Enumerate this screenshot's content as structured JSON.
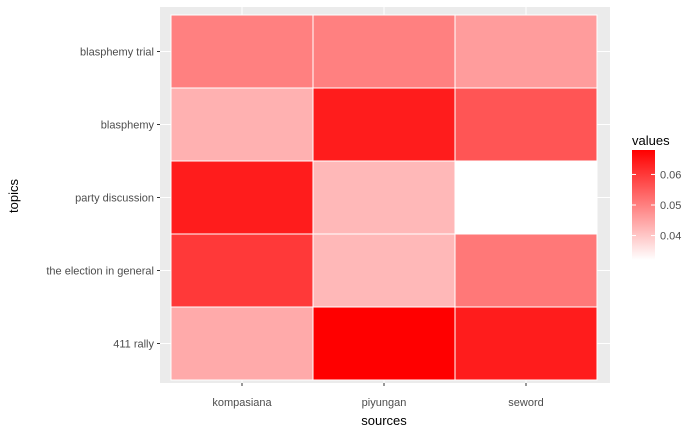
{
  "chart_data": {
    "type": "heatmap",
    "xlabel": "sources",
    "ylabel": "topics",
    "x_categories": [
      "kompasiana",
      "piyungan",
      "seword"
    ],
    "y_categories": [
      "blasphemy trial",
      "blasphemy",
      "party discussion",
      "the election in general",
      "411 rally"
    ],
    "values": [
      [
        0.05,
        0.05,
        0.046
      ],
      [
        0.043,
        0.064,
        0.056
      ],
      [
        0.064,
        0.042,
        0.032
      ],
      [
        0.06,
        0.042,
        0.051
      ],
      [
        0.044,
        0.068,
        0.064
      ]
    ],
    "legend": {
      "title": "values",
      "ticks": [
        0.04,
        0.05,
        0.06
      ],
      "tick_labels": [
        "0.04",
        "0.05",
        "0.06"
      ],
      "range": [
        0.032,
        0.068
      ],
      "low_color": "#ffffff",
      "high_color": "#ff0000",
      "position": "right"
    },
    "panel_background": "#ebebeb",
    "grid": true
  }
}
